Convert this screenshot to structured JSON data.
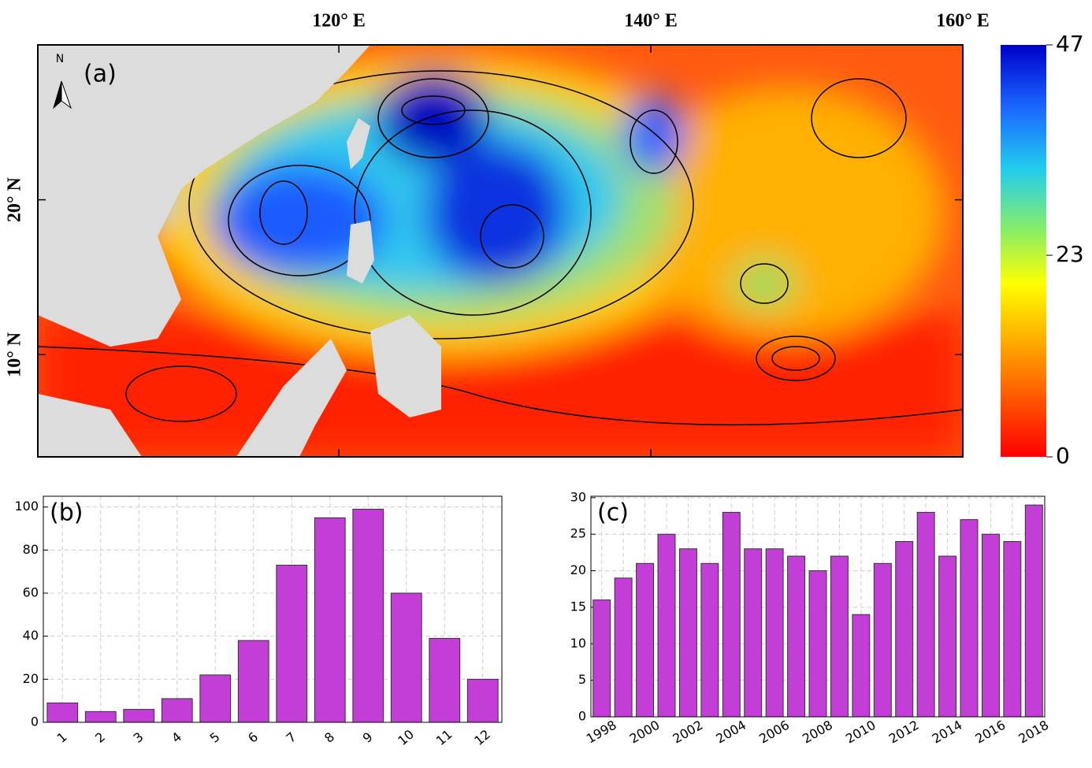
{
  "chart_data": [
    {
      "type": "map",
      "panel_label": "(a)",
      "north_label": "N",
      "xlim": [
        100.7,
        160
      ],
      "xticks": [
        {
          "value": 120,
          "label": "120° E"
        },
        {
          "value": 140,
          "label": "140° E"
        },
        {
          "value": 160,
          "label": "160° E"
        }
      ],
      "ylim": [
        3.4,
        30
      ],
      "yticks": [
        {
          "value": 10,
          "label": "10° N"
        },
        {
          "value": 20,
          "label": "20° N"
        }
      ],
      "colorbar_lim": [
        0,
        47
      ],
      "colorbar_ticks": [
        0,
        23,
        47
      ]
    },
    {
      "type": "bar",
      "panel_label": "(b)",
      "color": "#c23ed6",
      "grid": true,
      "categories": [
        "1",
        "2",
        "3",
        "4",
        "5",
        "6",
        "7",
        "8",
        "9",
        "10",
        "11",
        "12"
      ],
      "values": [
        9,
        5,
        6,
        11,
        22,
        38,
        73,
        95,
        99,
        60,
        39,
        20
      ],
      "ylim": [
        0,
        105
      ],
      "yticks": [
        0,
        20,
        40,
        60,
        80,
        100
      ]
    },
    {
      "type": "bar",
      "panel_label": "(c)",
      "color": "#c23ed6",
      "grid": true,
      "categories": [
        "1998",
        null,
        "2000",
        null,
        "2002",
        null,
        "2004",
        null,
        "2006",
        null,
        "2008",
        null,
        "2010",
        null,
        "2012",
        null,
        "2014",
        null,
        "2016",
        null,
        "2018"
      ],
      "values": [
        16,
        19,
        21,
        25,
        23,
        21,
        28,
        23,
        23,
        22,
        20,
        22,
        14,
        21,
        24,
        28,
        22,
        27,
        25,
        24,
        29
      ],
      "ylim": [
        0,
        30.2
      ],
      "yticks": [
        0,
        5,
        10,
        15,
        20,
        25,
        30
      ]
    }
  ]
}
